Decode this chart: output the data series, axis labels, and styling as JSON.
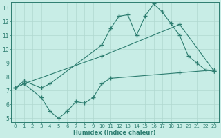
{
  "line1_x": [
    0,
    1,
    3,
    4,
    10,
    11,
    12,
    13,
    14,
    15,
    16,
    17,
    18,
    19,
    20,
    21,
    22,
    23
  ],
  "line1_y": [
    7.2,
    7.7,
    7.2,
    7.5,
    10.3,
    11.5,
    12.4,
    12.5,
    11.0,
    12.4,
    13.3,
    12.7,
    11.85,
    11.0,
    9.5,
    9.0,
    8.5,
    8.4
  ],
  "line2_x": [
    0,
    1,
    10,
    19,
    23
  ],
  "line2_y": [
    7.2,
    7.5,
    9.5,
    11.8,
    8.4
  ],
  "line3_x": [
    0,
    1,
    3,
    4,
    5,
    6,
    7,
    8,
    9,
    10,
    11,
    19,
    23
  ],
  "line3_y": [
    7.2,
    7.5,
    6.5,
    5.5,
    5.0,
    5.5,
    6.2,
    6.1,
    6.5,
    7.5,
    7.9,
    8.3,
    8.5
  ],
  "line_color": "#2d7d70",
  "bg_color": "#c8ede6",
  "grid_color": "#b0d8d0",
  "xlabel": "Humidex (Indice chaleur)",
  "xlim": [
    -0.5,
    23.5
  ],
  "ylim": [
    4.7,
    13.4
  ],
  "yticks": [
    5,
    6,
    7,
    8,
    9,
    10,
    11,
    12,
    13
  ],
  "xticks": [
    0,
    1,
    2,
    3,
    4,
    5,
    6,
    7,
    8,
    9,
    10,
    11,
    12,
    13,
    14,
    15,
    16,
    17,
    18,
    19,
    20,
    21,
    22,
    23
  ],
  "tick_fontsize": 5.0,
  "label_fontsize": 6.0
}
